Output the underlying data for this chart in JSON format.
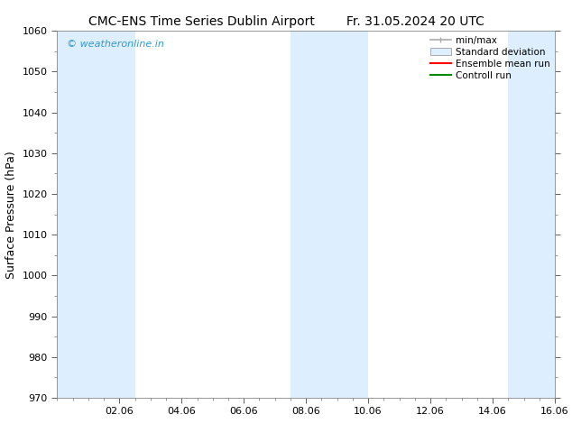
{
  "title_left": "CMC-ENS Time Series Dublin Airport",
  "title_right": "Fr. 31.05.2024 20 UTC",
  "ylabel": "Surface Pressure (hPa)",
  "ylim": [
    970,
    1060
  ],
  "yticks": [
    970,
    980,
    990,
    1000,
    1010,
    1020,
    1030,
    1040,
    1050,
    1060
  ],
  "xlim_start": 0.0,
  "xlim_end": 16.0,
  "xtick_labels": [
    "02.06",
    "04.06",
    "06.06",
    "08.06",
    "10.06",
    "12.06",
    "14.06",
    "16.06"
  ],
  "xtick_positions": [
    2,
    4,
    6,
    8,
    10,
    12,
    14,
    16
  ],
  "shaded_bands": [
    {
      "x_start": 0.0,
      "x_end": 2.5
    },
    {
      "x_start": 7.5,
      "x_end": 10.0
    },
    {
      "x_start": 14.5,
      "x_end": 16.0
    }
  ],
  "shade_color": "#ddeeff",
  "bg_color": "#ffffff",
  "watermark_text": "© weatheronline.in",
  "watermark_color": "#3399cc",
  "title_fontsize": 10,
  "axis_label_fontsize": 9,
  "tick_fontsize": 8,
  "legend_fontsize": 7.5,
  "spine_color": "#888888",
  "tick_color": "#444444",
  "minmax_color": "#aaaaaa",
  "stddev_face": "#ddeeff",
  "stddev_edge": "#aaaaaa",
  "ensemble_color": "#ff0000",
  "control_color": "#008800"
}
